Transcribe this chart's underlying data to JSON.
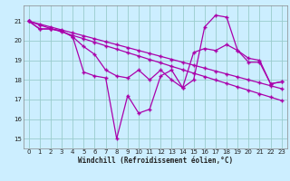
{
  "xlabel": "Windchill (Refroidissement éolien,°C)",
  "x": [
    0,
    1,
    2,
    3,
    4,
    5,
    6,
    7,
    8,
    9,
    10,
    11,
    12,
    13,
    14,
    15,
    16,
    17,
    18,
    19,
    20,
    21,
    22,
    23
  ],
  "line_straight1": [
    21.0,
    20.85,
    20.7,
    20.55,
    20.4,
    20.25,
    20.1,
    19.95,
    19.8,
    19.65,
    19.5,
    19.35,
    19.2,
    19.05,
    18.9,
    18.75,
    18.6,
    18.45,
    18.3,
    18.15,
    18.0,
    17.85,
    17.7,
    17.55
  ],
  "line_straight2": [
    21.0,
    20.8,
    20.62,
    20.45,
    20.27,
    20.1,
    19.92,
    19.74,
    19.57,
    19.39,
    19.22,
    19.04,
    18.87,
    18.69,
    18.52,
    18.34,
    18.17,
    17.99,
    17.82,
    17.64,
    17.47,
    17.29,
    17.12,
    16.94
  ],
  "line_wavy1": [
    21.0,
    20.6,
    20.6,
    20.5,
    20.2,
    18.4,
    18.2,
    18.1,
    15.0,
    17.2,
    16.3,
    16.5,
    18.2,
    18.5,
    17.6,
    18.0,
    20.7,
    21.3,
    21.2,
    19.5,
    19.1,
    19.0,
    17.8,
    17.9
  ],
  "line_wavy2": [
    21.0,
    20.6,
    20.6,
    20.5,
    20.2,
    19.7,
    19.3,
    18.5,
    18.2,
    18.1,
    18.5,
    18.0,
    18.5,
    18.0,
    17.6,
    19.4,
    19.6,
    19.5,
    19.8,
    19.5,
    18.9,
    18.9,
    17.8,
    17.9
  ],
  "line_color": "#aa00aa",
  "bg_color": "#cceeff",
  "grid_color": "#99cccc",
  "ylim": [
    14.5,
    21.8
  ],
  "yticks": [
    15,
    16,
    17,
    18,
    19,
    20,
    21
  ],
  "xticks": [
    0,
    1,
    2,
    3,
    4,
    5,
    6,
    7,
    8,
    9,
    10,
    11,
    12,
    13,
    14,
    15,
    16,
    17,
    18,
    19,
    20,
    21,
    22,
    23
  ]
}
